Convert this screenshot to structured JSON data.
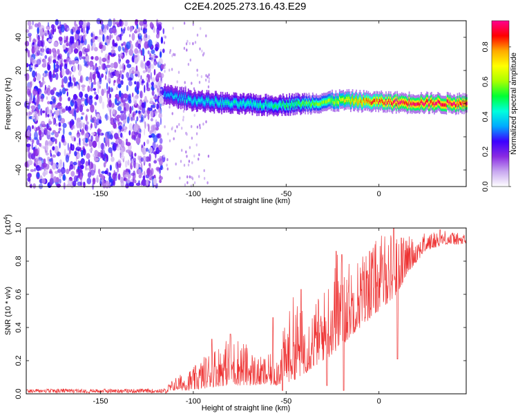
{
  "title": "C2E4.2025.273.16.43.E29",
  "chart_data": [
    {
      "type": "heatmap",
      "xlabel": "Height of straight line (km)",
      "ylabel": "Frequency (Hz)",
      "xlim": [
        -190,
        47
      ],
      "ylim": [
        -50,
        50
      ],
      "xticks": [
        -150,
        -100,
        -50,
        0
      ],
      "yticks": [
        -40,
        -20,
        0,
        20,
        40
      ],
      "noise_region_x": [
        -190,
        -116
      ],
      "signal_band": {
        "x_start": -116,
        "x_end": 47,
        "center_hz": [
          [
            -116,
            6
          ],
          [
            -110,
            4
          ],
          [
            -100,
            2
          ],
          [
            -80,
            0
          ],
          [
            -60,
            -1
          ],
          [
            -40,
            0
          ],
          [
            -20,
            2
          ],
          [
            0,
            1
          ],
          [
            20,
            0.5
          ],
          [
            47,
            0
          ]
        ],
        "half_width_hz": 5,
        "core_amplitude": [
          [
            -116,
            0.35
          ],
          [
            -100,
            0.4
          ],
          [
            -60,
            0.45
          ],
          [
            -30,
            0.55
          ],
          [
            -10,
            0.75
          ],
          [
            10,
            0.9
          ],
          [
            47,
            0.9
          ]
        ]
      },
      "colorbar": {
        "label": "Normalized spectral amplitude",
        "range": [
          0,
          0.95
        ],
        "ticks": [
          0.0,
          0.2,
          0.4,
          0.6,
          0.8
        ],
        "tick_labels": [
          "0.0",
          "0.2",
          "0.4",
          "0.6",
          "0.8"
        ],
        "colors": [
          "#ffffff",
          "#c8a8f0",
          "#8a2be2",
          "#3c00ff",
          "#00aaff",
          "#00ffdd",
          "#00ff33",
          "#aaff00",
          "#ffff00",
          "#ffaa00",
          "#ff0000",
          "#ff0090"
        ]
      }
    },
    {
      "type": "line",
      "xlabel": "Height of straight line (km)",
      "ylabel": "SNR (10 * v/v)",
      "multiplier": "(x10",
      "multiplier_exp": "4",
      "multiplier_close": ")",
      "xlim": [
        -190,
        47
      ],
      "ylim": [
        0,
        1.0
      ],
      "xticks": [
        -150,
        -100,
        -50,
        0
      ],
      "yticks": [
        0.0,
        0.2,
        0.4,
        0.6,
        0.8,
        1.0
      ],
      "ytick_labels": [
        "0.0",
        "0.2",
        "0.4",
        "0.6",
        "0.8",
        "1.0"
      ],
      "series": [
        {
          "name": "SNR",
          "color": "#ee3333",
          "envelope_x": [
            -190,
            -150,
            -116,
            -110,
            -100,
            -90,
            -82,
            -75,
            -65,
            -55,
            -46,
            -40,
            -30,
            -22,
            -15,
            -5,
            5,
            10,
            15,
            25,
            35,
            47
          ],
          "envelope_lo": [
            0.0,
            0.0,
            0.0,
            0.02,
            0.02,
            0.04,
            0.05,
            0.05,
            0.05,
            0.05,
            0.08,
            0.12,
            0.2,
            0.25,
            0.35,
            0.45,
            0.55,
            0.6,
            0.72,
            0.86,
            0.9,
            0.9
          ],
          "envelope_hi": [
            0.03,
            0.03,
            0.03,
            0.1,
            0.16,
            0.28,
            0.33,
            0.35,
            0.22,
            0.25,
            0.6,
            0.5,
            0.62,
            0.88,
            0.8,
            0.9,
            1.0,
            0.95,
            0.95,
            0.97,
            0.99,
            0.96
          ],
          "spikes": [
            [
              -90,
              0.33
            ],
            [
              -80,
              0.36
            ],
            [
              -57,
              0.46
            ],
            [
              -42,
              0.63
            ],
            [
              -23,
              0.86
            ],
            [
              -20,
              0.84
            ],
            [
              -5,
              0.86
            ],
            [
              8,
              1.0
            ],
            [
              12,
              0.94
            ],
            [
              33,
              0.99
            ]
          ],
          "dips": [
            [
              -52,
              0.02
            ],
            [
              -28,
              0.05
            ],
            [
              -19,
              0.02
            ],
            [
              10,
              0.21
            ]
          ]
        }
      ]
    }
  ]
}
